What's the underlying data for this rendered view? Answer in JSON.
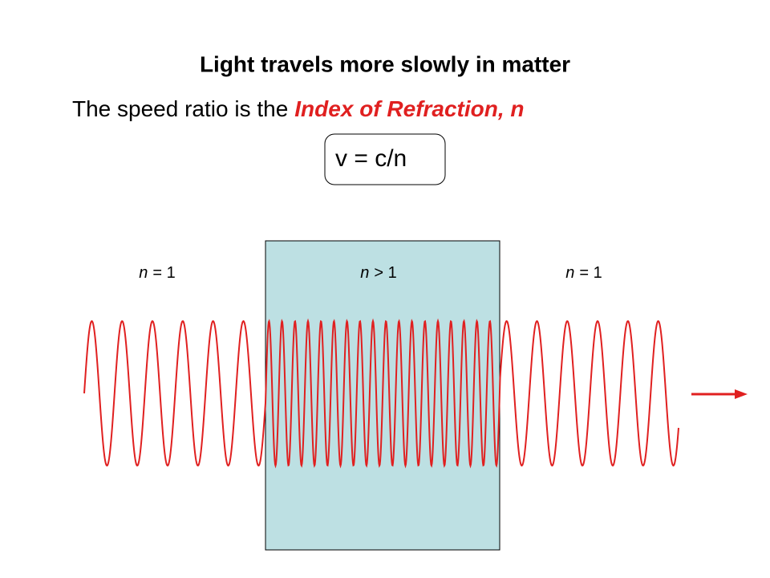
{
  "title": "Light travels more slowly in matter",
  "subtitle": {
    "lead": "The speed ratio is the",
    "highlight": "Index of Refraction, n"
  },
  "formula": "v = c/n",
  "regions": [
    {
      "symbol": "n",
      "relation": "= 1"
    },
    {
      "symbol": "n",
      "relation": "> 1"
    },
    {
      "symbol": "n",
      "relation": "= 1"
    }
  ]
}
